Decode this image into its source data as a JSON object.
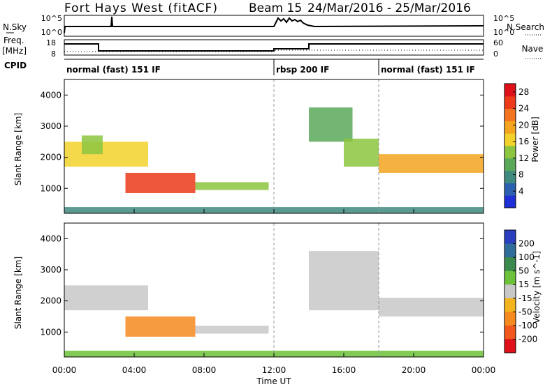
{
  "header": {
    "station": "Fort Hays West (fitACF)",
    "beam_label": "Beam 15",
    "date_range": "24/Mar/2016 - 25/Mar/2016"
  },
  "summary_panels": {
    "nsky_label": "N.Sky",
    "nsky_ticks": [
      "10^5",
      "10^0"
    ],
    "nsearch_label": "N.Search",
    "nsearch_ticks": [
      "10^5",
      "10^0"
    ],
    "freq_label": "Freq.",
    "freq_unit": "[MHz]",
    "freq_ticks": [
      "18",
      "8"
    ],
    "nave_label": "Nave",
    "nave_ticks": [
      "60",
      "0"
    ],
    "cpid_label": "CPID"
  },
  "cpid_segments": [
    {
      "label": "normal (fast) 151 IF",
      "start_hour": 0,
      "end_hour": 12
    },
    {
      "label": "rbsp 200 IF",
      "start_hour": 12,
      "end_hour": 18
    },
    {
      "label": "normal (fast) 151 IF",
      "start_hour": 18,
      "end_hour": 24
    }
  ],
  "x_axis": {
    "label": "Time UT",
    "ticks": [
      "00:00",
      "04:00",
      "08:00",
      "12:00",
      "16:00",
      "20:00",
      "00:00"
    ]
  },
  "chart_data": [
    {
      "type": "heatmap",
      "title": "Power",
      "ylabel": "Slant Range [km]",
      "xlabel": "Time UT",
      "xlim_hours": [
        0,
        24
      ],
      "ylim": [
        200,
        4500
      ],
      "y_ticks": [
        1000,
        2000,
        3000,
        4000
      ],
      "colorbar": {
        "label": "Power [dB]",
        "ticks": [
          "4",
          "8",
          "12",
          "16",
          "20",
          "24",
          "28"
        ],
        "range": [
          0,
          30
        ],
        "colors": [
          "#1f2fd6",
          "#2b5fb0",
          "#3f8a7e",
          "#5aa85a",
          "#8cc640",
          "#f2d22a",
          "#f4a41e",
          "#f37420",
          "#ec3a1a",
          "#e0101a"
        ]
      },
      "regions": [
        {
          "t_start": 0.0,
          "t_end": 4.8,
          "r_low": 1700,
          "r_high": 2500,
          "level": 16
        },
        {
          "t_start": 1.0,
          "t_end": 2.2,
          "r_low": 2100,
          "r_high": 2700,
          "level": 14
        },
        {
          "t_start": 3.5,
          "t_end": 7.5,
          "r_low": 850,
          "r_high": 1500,
          "level": 26
        },
        {
          "t_start": 7.5,
          "t_end": 11.7,
          "r_low": 950,
          "r_high": 1200,
          "level": 12
        },
        {
          "t_start": 14.0,
          "t_end": 16.5,
          "r_low": 2500,
          "r_high": 3600,
          "level": 10
        },
        {
          "t_start": 16.0,
          "t_end": 18.0,
          "r_low": 1700,
          "r_high": 2600,
          "level": 14
        },
        {
          "t_start": 18.0,
          "t_end": 24.0,
          "r_low": 1500,
          "r_high": 2100,
          "level": 20
        },
        {
          "t_start": 0.0,
          "t_end": 24.0,
          "r_low": 200,
          "r_high": 400,
          "level": 8
        }
      ]
    },
    {
      "type": "heatmap",
      "title": "Velocity",
      "ylabel": "Slant Range [km]",
      "xlabel": "Time UT",
      "xlim_hours": [
        0,
        24
      ],
      "ylim": [
        200,
        4500
      ],
      "y_ticks": [
        1000,
        2000,
        3000,
        4000
      ],
      "colorbar": {
        "label": "Velocity [m s^-1]",
        "ticks": [
          "200",
          "100",
          "50",
          "15",
          "-15",
          "-50",
          "-100",
          "-200"
        ],
        "colors": [
          "#2a3fc0",
          "#2f6d9a",
          "#3b8a4e",
          "#6cc23a",
          "#c8c8c8",
          "#f4b41e",
          "#f58a1e",
          "#f2581c",
          "#e0101a"
        ]
      },
      "regions": [
        {
          "t_start": 0.0,
          "t_end": 4.8,
          "r_low": 1700,
          "r_high": 2500,
          "level": 0
        },
        {
          "t_start": 3.5,
          "t_end": 7.5,
          "r_low": 850,
          "r_high": 1500,
          "level": -60
        },
        {
          "t_start": 7.5,
          "t_end": 11.7,
          "r_low": 950,
          "r_high": 1200,
          "level": 0
        },
        {
          "t_start": 14.0,
          "t_end": 18.0,
          "r_low": 1700,
          "r_high": 3600,
          "level": 0
        },
        {
          "t_start": 18.0,
          "t_end": 24.0,
          "r_low": 1500,
          "r_high": 2100,
          "level": 0
        },
        {
          "t_start": 0.0,
          "t_end": 24.0,
          "r_low": 200,
          "r_high": 400,
          "level": 20
        }
      ]
    }
  ]
}
